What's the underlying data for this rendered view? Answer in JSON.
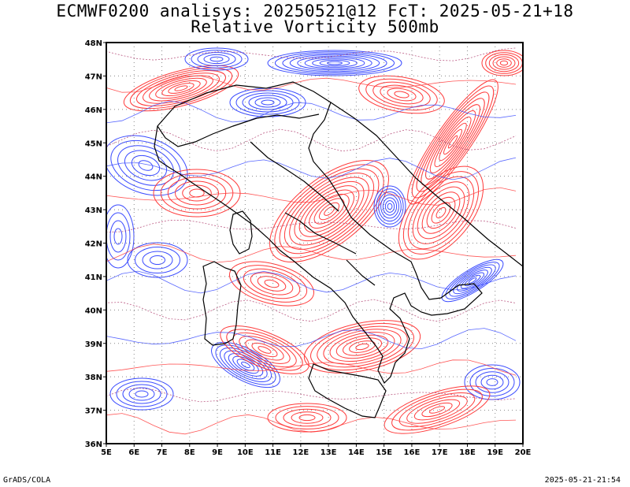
{
  "title_line1": "ECMWF0200 analisys: 20250521@12 FcT: 2025-05-21+18",
  "title_line2": "Relative Vorticity 500mb",
  "footer_left": "GrADS/COLA",
  "footer_right": "2025-05-21-21:54",
  "map": {
    "lon_range": [
      5,
      20
    ],
    "lat_range": [
      36,
      48
    ],
    "x_ticks": [
      "5E",
      "6E",
      "7E",
      "8E",
      "9E",
      "10E",
      "11E",
      "12E",
      "13E",
      "14E",
      "15E",
      "16E",
      "17E",
      "18E",
      "19E",
      "20E"
    ],
    "y_ticks": [
      "36N",
      "37N",
      "38N",
      "39N",
      "40N",
      "41N",
      "42N",
      "43N",
      "44N",
      "45N",
      "46N",
      "47N",
      "48N"
    ],
    "grid": "dotted",
    "positive_contour_color": "#ff3a3a",
    "negative_contour_color": "#3a4bff",
    "zero_contour_color": "#b04070"
  }
}
